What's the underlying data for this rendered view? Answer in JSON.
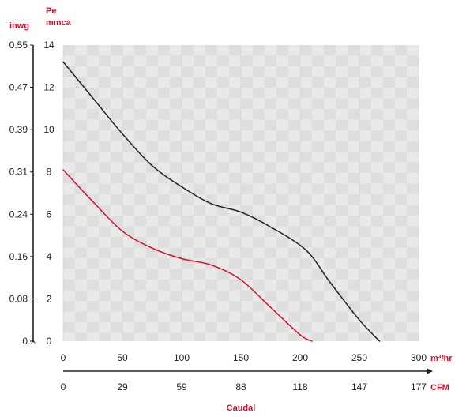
{
  "chart_data": {
    "type": "line",
    "xlabel": "Caudal",
    "x_unit_primary": "m³/hr",
    "x_unit_secondary": "CFM",
    "y_unit_primary_line1": "Pe",
    "y_unit_primary_line2": "mmca",
    "y_unit_secondary": "inwg",
    "xlim": [
      0,
      300
    ],
    "ylim": [
      0,
      14
    ],
    "x_ticks": [
      "0",
      "50",
      "100",
      "150",
      "200",
      "250",
      "300"
    ],
    "x_ticks_secondary": [
      "0",
      "29",
      "59",
      "88",
      "118",
      "147",
      "177"
    ],
    "y_ticks": [
      "0",
      "2",
      "4",
      "6",
      "8",
      "10",
      "12",
      "14"
    ],
    "y_ticks_secondary": [
      "0",
      "0.08",
      "0.16",
      "0.24",
      "0.31",
      "0.39",
      "0.47",
      "0.55"
    ],
    "grid": true,
    "series": [
      {
        "color": "#222222",
        "x": [
          0,
          25,
          50,
          75,
          100,
          125,
          150,
          175,
          205,
          225,
          250,
          267
        ],
        "y": [
          13.2,
          11.5,
          9.8,
          8.3,
          7.3,
          6.5,
          6.1,
          5.4,
          4.3,
          2.8,
          1.0,
          0
        ]
      },
      {
        "color": "#d0102b",
        "x": [
          0,
          25,
          50,
          75,
          100,
          125,
          150,
          175,
          200,
          210
        ],
        "y": [
          8.1,
          6.6,
          5.2,
          4.4,
          3.9,
          3.6,
          2.9,
          1.6,
          0.3,
          0
        ]
      }
    ]
  }
}
